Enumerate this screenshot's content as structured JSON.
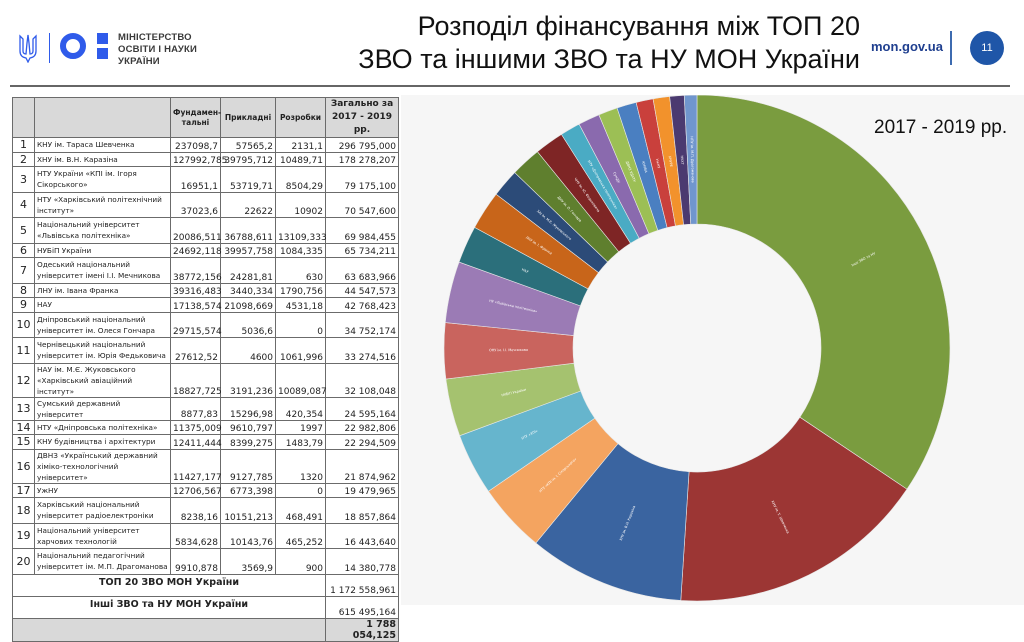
{
  "header": {
    "ministry_line1": "МІНІСТЕРСТВО",
    "ministry_line2": "ОСВІТИ І НАУКИ",
    "ministry_line3": "УКРАЇНИ",
    "title_line1": "Розподіл фінансування між ТОП 20",
    "title_line2": "ЗВО та іншими ЗВО та НУ МОН України",
    "site": "mon.gov.ua",
    "page_number": "11",
    "brand_color": "#2f5bea"
  },
  "table": {
    "headers": [
      "",
      "",
      "Фундамен-тальні",
      "Прикладні",
      "Розробки",
      "Загально за 2017 - 2019 рр."
    ],
    "rows": [
      {
        "n": "1",
        "name": "КНУ ім. Тараса Шевченка",
        "fund": "237098,7",
        "appl": "57565,2",
        "dev": "2131,1",
        "total": "296 795,000"
      },
      {
        "n": "2",
        "name": "ХНУ ім. В.Н. Каразіна",
        "fund": "127992,785",
        "appl": "39795,712",
        "dev": "10489,71",
        "total": "178 278,207"
      },
      {
        "n": "3",
        "name": "НТУ України «КПІ ім. Ігоря Сікорського»",
        "fund": "16951,1",
        "appl": "53719,71",
        "dev": "8504,29",
        "total": "79 175,100"
      },
      {
        "n": "4",
        "name": "НТУ «Харківський політехнічний інститут»",
        "fund": "37023,6",
        "appl": "22622",
        "dev": "10902",
        "total": "70 547,600"
      },
      {
        "n": "5",
        "name": "Національний університет «Львівська політехніка»",
        "fund": "20086,511",
        "appl": "36788,611",
        "dev": "13109,333",
        "total": "69 984,455"
      },
      {
        "n": "6",
        "name": "НУБіП України",
        "fund": "24692,118",
        "appl": "39957,758",
        "dev": "1084,335",
        "total": "65 734,211"
      },
      {
        "n": "7",
        "name": "Одеський національний університет імені І.І. Мечникова",
        "fund": "38772,156",
        "appl": "24281,81",
        "dev": "630",
        "total": "63 683,966"
      },
      {
        "n": "8",
        "name": "ЛНУ ім. Івана Франка",
        "fund": "39316,483",
        "appl": "3440,334",
        "dev": "1790,756",
        "total": "44 547,573"
      },
      {
        "n": "9",
        "name": "НАУ",
        "fund": "17138,574",
        "appl": "21098,669",
        "dev": "4531,18",
        "total": "42 768,423"
      },
      {
        "n": "10",
        "name": "Дніпровський національний університет ім. Олеся Гончара",
        "fund": "29715,574",
        "appl": "5036,6",
        "dev": "0",
        "total": "34 752,174"
      },
      {
        "n": "11",
        "name": "Чернівецький національний університет ім. Юрія Федьковича",
        "fund": "27612,52",
        "appl": "4600",
        "dev": "1061,996",
        "total": "33 274,516"
      },
      {
        "n": "12",
        "name": "НАУ ім. М.Є. Жуковського «Харківський авіаційний інститут»",
        "fund": "18827,725",
        "appl": "3191,236",
        "dev": "10089,087",
        "total": "32 108,048"
      },
      {
        "n": "13",
        "name": "Сумський державний університет",
        "fund": "8877,83",
        "appl": "15296,98",
        "dev": "420,354",
        "total": "24 595,164"
      },
      {
        "n": "14",
        "name": "НТУ «Дніпровська політехніка»",
        "fund": "11375,009",
        "appl": "9610,797",
        "dev": "1997",
        "total": "22 982,806"
      },
      {
        "n": "15",
        "name": "КНУ будівництва і архітектури",
        "fund": "12411,444",
        "appl": "8399,275",
        "dev": "1483,79",
        "total": "22 294,509"
      },
      {
        "n": "16",
        "name": "ДВНЗ «Український державний хіміко-технологічний університет»",
        "fund": "11427,177",
        "appl": "9127,785",
        "dev": "1320",
        "total": "21 874,962"
      },
      {
        "n": "17",
        "name": "УжНУ",
        "fund": "12706,567",
        "appl": "6773,398",
        "dev": "0",
        "total": "19 479,965"
      },
      {
        "n": "18",
        "name": "Харківський національний університет радіоелектроніки",
        "fund": "8238,16",
        "appl": "10151,213",
        "dev": "468,491",
        "total": "18 857,864"
      },
      {
        "n": "19",
        "name": "Національний університет харчових технологій",
        "fund": "5834,628",
        "appl": "10143,76",
        "dev": "465,252",
        "total": "16 443,640"
      },
      {
        "n": "20",
        "name": "Національний педагогічний університет ім. М.П. Драгоманова",
        "fund": "9910,878",
        "appl": "3569,9",
        "dev": "900",
        "total": "14 380,778"
      }
    ],
    "top20_label": "ТОП 20 ЗВО МОН України",
    "top20_total": "1 172 558,961",
    "others_label": "Інші ЗВО та НУ МОН України",
    "others_total": "615 495,164",
    "grand_total": "1 788 054,125"
  },
  "chart_data": {
    "type": "pie",
    "title": "2017 - 2019 рр.",
    "donut": true,
    "start": "top",
    "direction": "clockwise",
    "categories": [
      "Інші ЗВО та НУ",
      "КНУ ім. Т. Шевченка",
      "ХНУ ім. В.Н. Каразіна",
      "НТУ «КПІ ім. І. Сікорського»",
      "НТУ «ХПІ»",
      "НУБіП України",
      "ОНУ ім. І.І. Мечникова",
      "НУ «Львівська політехніка»",
      "НАУ",
      "ЛНУ ім. І. Франка",
      "ХАІ ім. М.Є. Жуковського",
      "ДНУ ім. О. Гончара",
      "ЧНУ ім. Ю. Федьковича",
      "НТУ «Дніпровська політехніка»",
      "СумДУ",
      "ДВНЗ УДХТУ",
      "КНУБА",
      "УжНУ",
      "ХНУРЕ",
      "НУХТ",
      "НПУ ім. М.П. Драгоманова"
    ],
    "values": [
      615495.164,
      296795.0,
      178278.207,
      79175.1,
      70547.6,
      65734.211,
      63683.966,
      69984.455,
      42768.423,
      44547.573,
      32108.048,
      34752.174,
      33274.516,
      22982.806,
      24595.164,
      21874.962,
      22294.509,
      19479.965,
      18857.864,
      16443.64,
      14380.778
    ],
    "colors": [
      "#7a9c3f",
      "#9c3634",
      "#3a64a0",
      "#f4a460",
      "#66b5cd",
      "#a5c26f",
      "#c9645e",
      "#9b7bb5",
      "#2b6f7b",
      "#c8651a",
      "#2c4b78",
      "#5f7f2e",
      "#7e2525",
      "#4aabc4",
      "#8a6aae",
      "#9cbf55",
      "#4a7fc1",
      "#c9403c",
      "#f2922c",
      "#4b3a70",
      "#7096cd"
    ]
  }
}
